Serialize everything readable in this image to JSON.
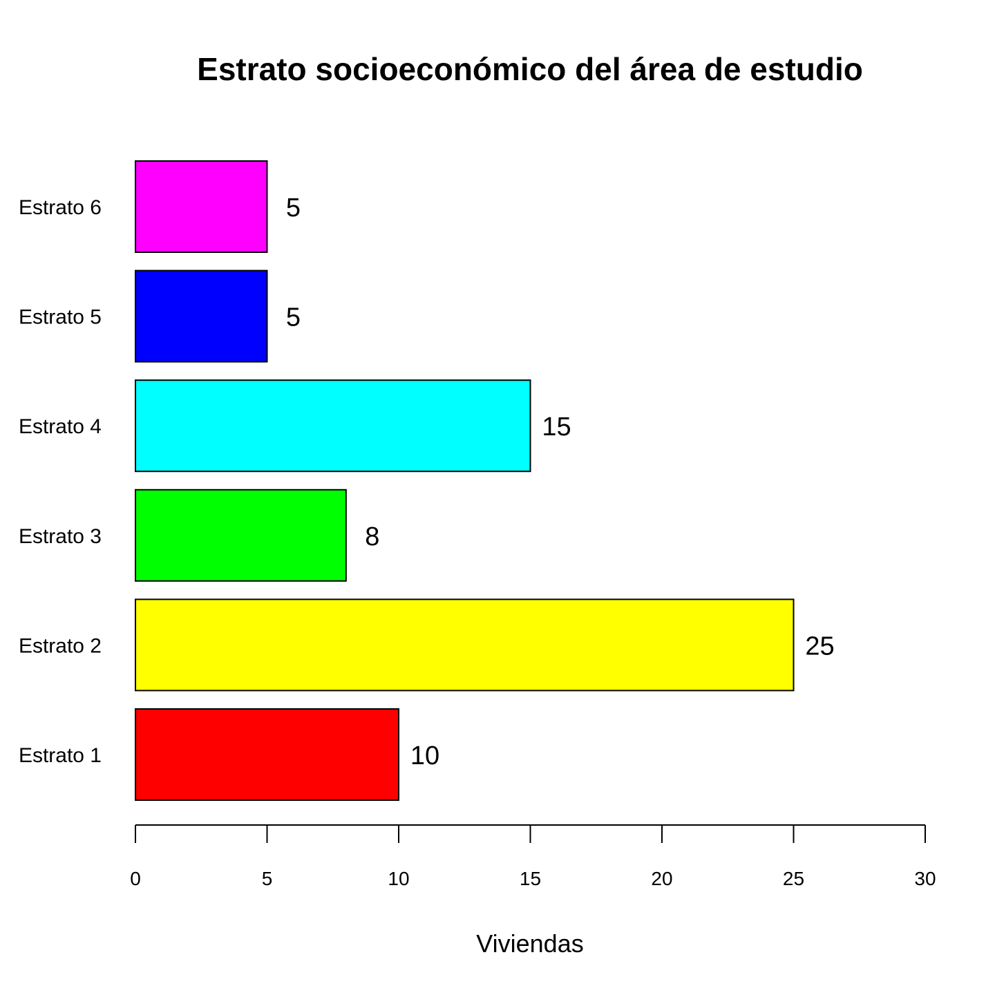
{
  "chart_data": {
    "type": "bar",
    "orientation": "horizontal",
    "title": "Estrato socioeconómico del área de estudio",
    "xlabel": "Viviendas",
    "ylabel": "",
    "categories": [
      "Estrato 1",
      "Estrato 2",
      "Estrato 3",
      "Estrato 4",
      "Estrato 5",
      "Estrato 6"
    ],
    "values": [
      10,
      25,
      8,
      15,
      5,
      5
    ],
    "value_labels": [
      "10",
      "25",
      "8",
      "15",
      "5",
      "5"
    ],
    "colors": [
      "#ff0000",
      "#ffff00",
      "#00ff00",
      "#00ffff",
      "#0000ff",
      "#ff00ff"
    ],
    "xlim": [
      0,
      30
    ],
    "x_ticks": [
      0,
      5,
      10,
      15,
      20,
      25,
      30
    ],
    "x_tick_labels": [
      "0",
      "5",
      "10",
      "15",
      "20",
      "25",
      "30"
    ],
    "grid": false,
    "legend": "none"
  }
}
